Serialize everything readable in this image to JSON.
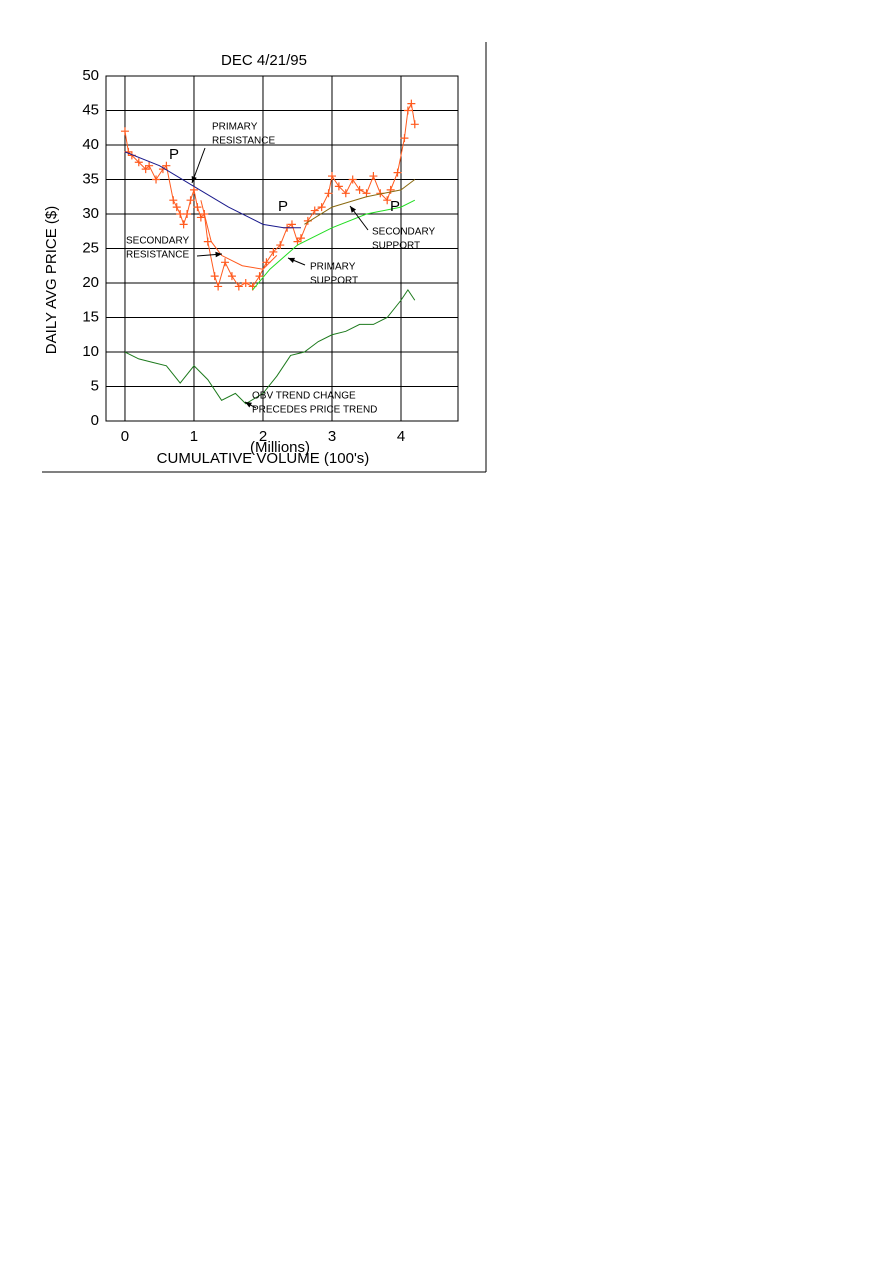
{
  "chart_data": {
    "type": "line",
    "title": "DEC   4/21/95",
    "x_label": "CUMULATIVE VOLUME (100's)",
    "x_unit": "(Millions)",
    "y_label": "DAILY AVG PRICE ($)",
    "xlim": [
      -0.275,
      4.826
    ],
    "xticks": [
      0,
      1,
      2,
      3,
      4
    ],
    "ylim": [
      0,
      50
    ],
    "yticks": [
      0,
      5,
      10,
      15,
      20,
      25,
      30,
      35,
      40,
      45,
      50
    ],
    "grid": true,
    "series": [
      {
        "color": "#ff5a1e",
        "markers": true,
        "x": [
          0,
          0.05,
          0.1,
          0.2,
          0.3,
          0.35,
          0.45,
          0.55,
          0.6,
          0.7,
          0.75,
          0.8,
          0.85,
          0.9,
          0.95,
          1.0,
          1.05,
          1.1,
          1.15,
          1.2,
          1.3,
          1.35,
          1.45,
          1.55,
          1.65,
          1.75,
          1.85,
          1.95,
          2.05,
          2.15,
          2.25,
          2.35,
          2.42,
          2.5,
          2.55,
          2.65,
          2.75,
          2.85,
          2.95,
          3.0,
          3.1,
          3.2,
          3.3,
          3.4,
          3.5,
          3.6,
          3.7,
          3.8,
          3.85,
          3.95,
          4.05,
          4.1,
          4.15,
          4.2
        ],
        "values": [
          42,
          39,
          38.5,
          37.5,
          36.5,
          37,
          35,
          36.5,
          37,
          32,
          31,
          30,
          28.5,
          30,
          32,
          33.5,
          31,
          29.5,
          30,
          26,
          21,
          19.5,
          23,
          21,
          19.5,
          20,
          19.5,
          21,
          23,
          24.5,
          25.5,
          28,
          28.5,
          26,
          26.5,
          29,
          30.5,
          31,
          33,
          35.5,
          34,
          33,
          35,
          33.5,
          33,
          35.5,
          33,
          32,
          33.5,
          36,
          41,
          45,
          46,
          43
        ]
      },
      {
        "color": "#1a1a8c",
        "x": [
          0,
          0.5,
          1.0,
          1.5,
          2.0,
          2.3,
          2.55
        ],
        "values": [
          39,
          37,
          34,
          31,
          28.5,
          28,
          28
        ]
      },
      {
        "color": "#ff5a1e",
        "x": [
          1.1,
          1.25,
          1.4,
          1.7,
          2.0,
          2.2
        ],
        "values": [
          32,
          26,
          24,
          22.5,
          22,
          24
        ]
      },
      {
        "color": "#22dd22",
        "x": [
          1.85,
          2.1,
          2.5,
          3.0,
          3.5,
          4.0,
          4.2
        ],
        "values": [
          19,
          22,
          25.5,
          28,
          30,
          31,
          32
        ]
      },
      {
        "color": "#8a6a10",
        "x": [
          2.6,
          3.0,
          3.5,
          4.0,
          4.2
        ],
        "values": [
          28.5,
          31,
          32.5,
          33.5,
          35
        ]
      },
      {
        "color": "#1d7a1d",
        "x": [
          0,
          0.2,
          0.4,
          0.6,
          0.8,
          1.0,
          1.2,
          1.4,
          1.6,
          1.75,
          2.0,
          2.2,
          2.4,
          2.6,
          2.8,
          3.0,
          3.2,
          3.4,
          3.6,
          3.8,
          4.0,
          4.1,
          4.2
        ],
        "values": [
          10,
          9,
          8.5,
          8,
          5.5,
          8,
          6,
          3,
          4,
          2.5,
          4,
          6.5,
          9.5,
          10,
          11.5,
          12.5,
          13,
          14,
          14,
          15,
          17.5,
          19,
          17.5
        ]
      }
    ],
    "annotations": [
      {
        "lines": [
          "P"
        ]
      },
      {
        "lines": [
          "P"
        ]
      },
      {
        "lines": [
          "P"
        ]
      },
      {
        "lines": [
          "PRIMARY",
          "RESISTANCE"
        ]
      },
      {
        "lines": [
          "SECONDARY",
          "RESISTANCE"
        ]
      },
      {
        "lines": [
          "PRIMARY",
          "SUPPORT"
        ]
      },
      {
        "lines": [
          "SECONDARY",
          "SUPPORT"
        ]
      },
      {
        "lines": [
          "OBV TREND CHANGE",
          "PRECEDES PRICE TREND"
        ]
      }
    ]
  }
}
